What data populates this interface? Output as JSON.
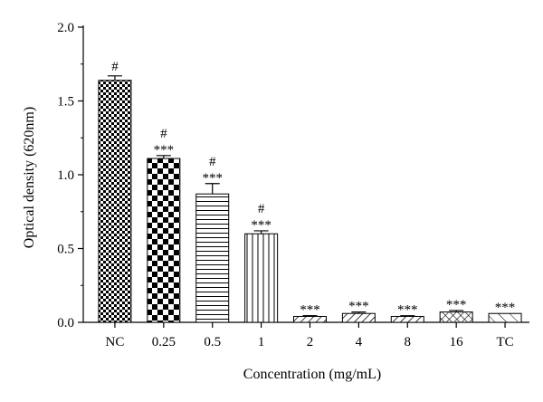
{
  "chart_data": {
    "type": "bar",
    "title": "",
    "xlabel": "Concentration (mg/mL)",
    "ylabel": "Optical density (620nm)",
    "ylim": [
      0,
      2.0
    ],
    "yticks": [
      "0.0",
      "0.5",
      "1.0",
      "1.5",
      "2.0"
    ],
    "grid": false,
    "categories": [
      "NC",
      "0.25",
      "0.5",
      "1",
      "2",
      "4",
      "8",
      "16",
      "TC"
    ],
    "values": [
      1.64,
      1.11,
      0.87,
      0.6,
      0.04,
      0.06,
      0.04,
      0.07,
      0.06
    ],
    "errors": [
      0.03,
      0.02,
      0.07,
      0.02,
      0.005,
      0.01,
      0.005,
      0.01,
      0.0
    ],
    "patterns": [
      "fine-check",
      "checker",
      "hlines",
      "vlines",
      "diag",
      "diag",
      "diag",
      "crosshatch",
      "diag-wide"
    ],
    "annotations": [
      [
        "#"
      ],
      [
        "#",
        "***"
      ],
      [
        "#",
        "***"
      ],
      [
        "#",
        "***"
      ],
      [
        "***"
      ],
      [
        "***"
      ],
      [
        "***"
      ],
      [
        "***"
      ],
      [
        "***"
      ]
    ]
  }
}
